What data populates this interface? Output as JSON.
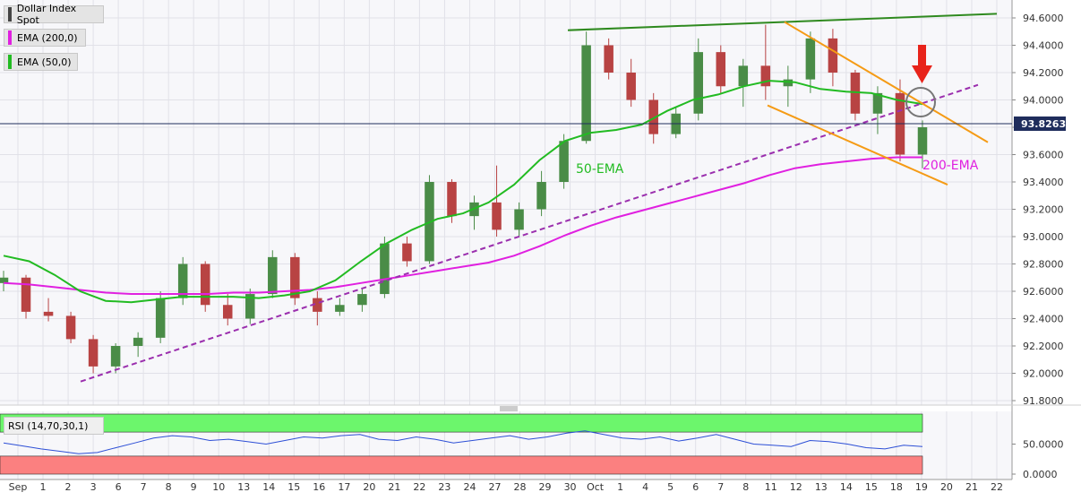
{
  "chart_data": {
    "type": "candlestick",
    "instrument": "Dollar Index Spot",
    "last_price": "93.8263",
    "colors": {
      "up": "#4a8c47",
      "down": "#b84343",
      "ema200": "#e020e0",
      "ema50": "#22bb22",
      "trend_support": "#9b2fae",
      "channel": "#f59b15",
      "resistance": "#2f8a1f",
      "arrow": "#e8231a",
      "rsi_upper_zone": "#6cf66c",
      "rsi_lower_zone": "#fb8080",
      "rsi_line": "#2d4fd6",
      "price_line": "#1f2d5c"
    },
    "legend": [
      {
        "label": "Dollar Index Spot",
        "color": "#444444"
      },
      {
        "label": "EMA (200,0)",
        "color": "#e020e0"
      },
      {
        "label": "EMA (50,0)",
        "color": "#22bb22"
      }
    ],
    "annotations": {
      "ema50_label": "50-EMA",
      "ema200_label": "200-EMA"
    },
    "price_axis": {
      "ticks": [
        "94.6000",
        "94.4000",
        "94.2000",
        "94.0000",
        "93.8000",
        "93.6000",
        "93.4000",
        "93.2000",
        "93.0000",
        "92.8000",
        "92.6000",
        "92.4000",
        "92.2000",
        "92.0000",
        "91.8000"
      ],
      "ylim": [
        91.8,
        94.6
      ]
    },
    "date_axis": {
      "labels": [
        "Sep",
        "1",
        "2",
        "3",
        "6",
        "7",
        "8",
        "9",
        "10",
        "13",
        "14",
        "15",
        "16",
        "17",
        "20",
        "21",
        "22",
        "23",
        "24",
        "27",
        "28",
        "29",
        "30",
        "Oct",
        "1",
        "4",
        "5",
        "6",
        "7",
        "8",
        "11",
        "12",
        "13",
        "14",
        "15",
        "18",
        "19",
        "20",
        "21",
        "22"
      ]
    },
    "rsi": {
      "label": "RSI (14,70,30,1)",
      "ticks": [
        "50.0000",
        "0.0000"
      ],
      "overbought": 70,
      "oversold": 30,
      "values": [
        52,
        47,
        42,
        38,
        34,
        36,
        44,
        52,
        60,
        64,
        62,
        56,
        58,
        54,
        50,
        56,
        62,
        60,
        64,
        66,
        58,
        56,
        62,
        58,
        52,
        56,
        60,
        64,
        58,
        62,
        68,
        72,
        66,
        60,
        58,
        62,
        55,
        60,
        66,
        58,
        50,
        48,
        46,
        56,
        54,
        50,
        44,
        42,
        48,
        46
      ]
    },
    "series": [
      {
        "name": "EMA (200,0)",
        "values": [
          92.66,
          92.65,
          92.63,
          92.61,
          92.59,
          92.58,
          92.58,
          92.58,
          92.58,
          92.59,
          92.59,
          92.6,
          92.61,
          92.63,
          92.66,
          92.69,
          92.72,
          92.75,
          92.78,
          92.81,
          92.86,
          92.93,
          93.01,
          93.08,
          93.14,
          93.19,
          93.24,
          93.29,
          93.34,
          93.39,
          93.45,
          93.5,
          93.53,
          93.55,
          93.57,
          93.58,
          93.58
        ]
      },
      {
        "name": "EMA (50,0)",
        "values": [
          92.86,
          92.82,
          92.72,
          92.6,
          92.53,
          92.52,
          92.54,
          92.56,
          92.56,
          92.56,
          92.55,
          92.57,
          92.6,
          92.68,
          92.82,
          92.95,
          93.05,
          93.13,
          93.17,
          93.25,
          93.38,
          93.56,
          93.7,
          93.76,
          93.78,
          93.82,
          93.92,
          94.0,
          94.04,
          94.1,
          94.14,
          94.13,
          94.08,
          94.06,
          94.05,
          94.0,
          93.97
        ]
      }
    ],
    "candles": [
      [
        92.66,
        92.75,
        92.6,
        92.7
      ],
      [
        92.7,
        92.72,
        92.4,
        92.45
      ],
      [
        92.45,
        92.55,
        92.38,
        92.42
      ],
      [
        92.42,
        92.45,
        92.22,
        92.25
      ],
      [
        92.25,
        92.28,
        92.0,
        92.05
      ],
      [
        92.05,
        92.22,
        92.0,
        92.2
      ],
      [
        92.2,
        92.3,
        92.12,
        92.26
      ],
      [
        92.26,
        92.6,
        92.22,
        92.55
      ],
      [
        92.55,
        92.85,
        92.5,
        92.8
      ],
      [
        92.8,
        92.82,
        92.45,
        92.5
      ],
      [
        92.5,
        92.58,
        92.35,
        92.4
      ],
      [
        92.4,
        92.62,
        92.36,
        92.58
      ],
      [
        92.58,
        92.9,
        92.55,
        92.85
      ],
      [
        92.85,
        92.88,
        92.5,
        92.55
      ],
      [
        92.55,
        92.6,
        92.35,
        92.45
      ],
      [
        92.45,
        92.55,
        92.42,
        92.5
      ],
      [
        92.5,
        92.62,
        92.45,
        92.58
      ],
      [
        92.58,
        93.0,
        92.55,
        92.95
      ],
      [
        92.95,
        93.0,
        92.78,
        92.82
      ],
      [
        92.82,
        93.45,
        92.8,
        93.4
      ],
      [
        93.4,
        93.42,
        93.1,
        93.15
      ],
      [
        93.15,
        93.3,
        93.05,
        93.25
      ],
      [
        93.25,
        93.52,
        93.0,
        93.05
      ],
      [
        93.05,
        93.25,
        93.0,
        93.2
      ],
      [
        93.2,
        93.48,
        93.15,
        93.4
      ],
      [
        93.4,
        93.75,
        93.35,
        93.7
      ],
      [
        93.7,
        94.5,
        93.68,
        94.4
      ],
      [
        94.4,
        94.45,
        94.15,
        94.2
      ],
      [
        94.2,
        94.3,
        93.95,
        94.0
      ],
      [
        94.0,
        94.05,
        93.68,
        93.75
      ],
      [
        93.75,
        93.95,
        93.72,
        93.9
      ],
      [
        93.9,
        94.45,
        93.85,
        94.35
      ],
      [
        94.35,
        94.4,
        94.05,
        94.1
      ],
      [
        94.1,
        94.3,
        93.95,
        94.25
      ],
      [
        94.25,
        94.55,
        94.0,
        94.1
      ],
      [
        94.1,
        94.25,
        93.95,
        94.15
      ],
      [
        94.15,
        94.5,
        94.05,
        94.45
      ],
      [
        94.45,
        94.52,
        94.1,
        94.2
      ],
      [
        94.2,
        94.22,
        93.85,
        93.9
      ],
      [
        93.9,
        94.1,
        93.75,
        94.05
      ],
      [
        94.05,
        94.15,
        93.55,
        93.6
      ],
      [
        93.6,
        93.85,
        93.5,
        93.8
      ]
    ]
  }
}
